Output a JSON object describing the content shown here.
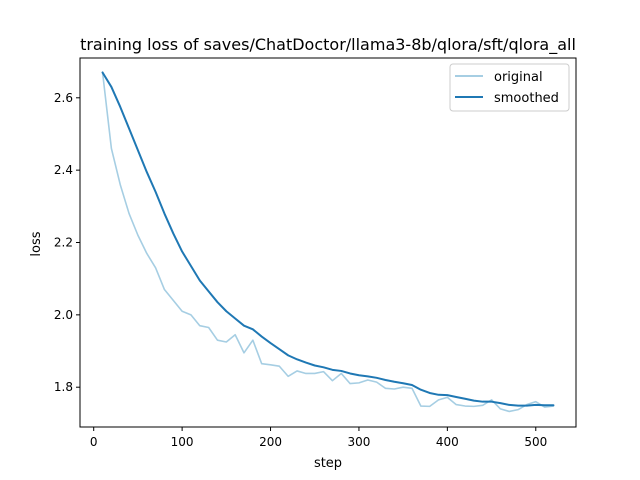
{
  "chart_data": {
    "type": "line",
    "title": "training loss of saves/ChatDoctor/llama3-8b/qlora/sft/qlora_all",
    "xlabel": "step",
    "ylabel": "loss",
    "xlim": [
      -15.5,
      545.5
    ],
    "ylim": [
      1.69,
      2.71
    ],
    "xticks": [
      0,
      100,
      200,
      300,
      400,
      500
    ],
    "yticks": [
      1.8,
      2.0,
      2.2,
      2.4,
      2.6
    ],
    "xtick_labels": [
      "0",
      "100",
      "200",
      "300",
      "400",
      "500"
    ],
    "ytick_labels": [
      "1.8",
      "2.0",
      "2.2",
      "2.4",
      "2.6"
    ],
    "grid": false,
    "legend_position": "top-right",
    "x": [
      10,
      20,
      30,
      40,
      50,
      60,
      70,
      80,
      90,
      100,
      110,
      120,
      130,
      140,
      150,
      160,
      170,
      180,
      190,
      200,
      210,
      220,
      230,
      240,
      250,
      260,
      270,
      280,
      290,
      300,
      310,
      320,
      330,
      340,
      350,
      360,
      370,
      380,
      390,
      400,
      410,
      420,
      430,
      440,
      450,
      460,
      470,
      480,
      490,
      500,
      510,
      520
    ],
    "series": [
      {
        "name": "original",
        "color": "#a6cee3",
        "values": [
          2.67,
          2.46,
          2.36,
          2.28,
          2.22,
          2.17,
          2.13,
          2.07,
          2.04,
          2.01,
          2.0,
          1.97,
          1.965,
          1.93,
          1.925,
          1.945,
          1.895,
          1.93,
          1.865,
          1.862,
          1.858,
          1.83,
          1.845,
          1.838,
          1.838,
          1.843,
          1.818,
          1.838,
          1.81,
          1.812,
          1.82,
          1.814,
          1.797,
          1.795,
          1.8,
          1.797,
          1.748,
          1.747,
          1.765,
          1.772,
          1.752,
          1.748,
          1.747,
          1.75,
          1.765,
          1.74,
          1.733,
          1.738,
          1.752,
          1.76,
          1.745,
          1.748
        ]
      },
      {
        "name": "smoothed",
        "color": "#1f78b4",
        "values": [
          2.67,
          2.63,
          2.575,
          2.515,
          2.455,
          2.395,
          2.34,
          2.28,
          2.225,
          2.175,
          2.135,
          2.095,
          2.065,
          2.035,
          2.01,
          1.99,
          1.97,
          1.96,
          1.94,
          1.922,
          1.905,
          1.888,
          1.877,
          1.868,
          1.86,
          1.855,
          1.848,
          1.845,
          1.838,
          1.833,
          1.83,
          1.826,
          1.82,
          1.815,
          1.811,
          1.806,
          1.793,
          1.784,
          1.779,
          1.778,
          1.773,
          1.768,
          1.763,
          1.76,
          1.76,
          1.756,
          1.751,
          1.749,
          1.749,
          1.751,
          1.75,
          1.75
        ]
      }
    ]
  }
}
